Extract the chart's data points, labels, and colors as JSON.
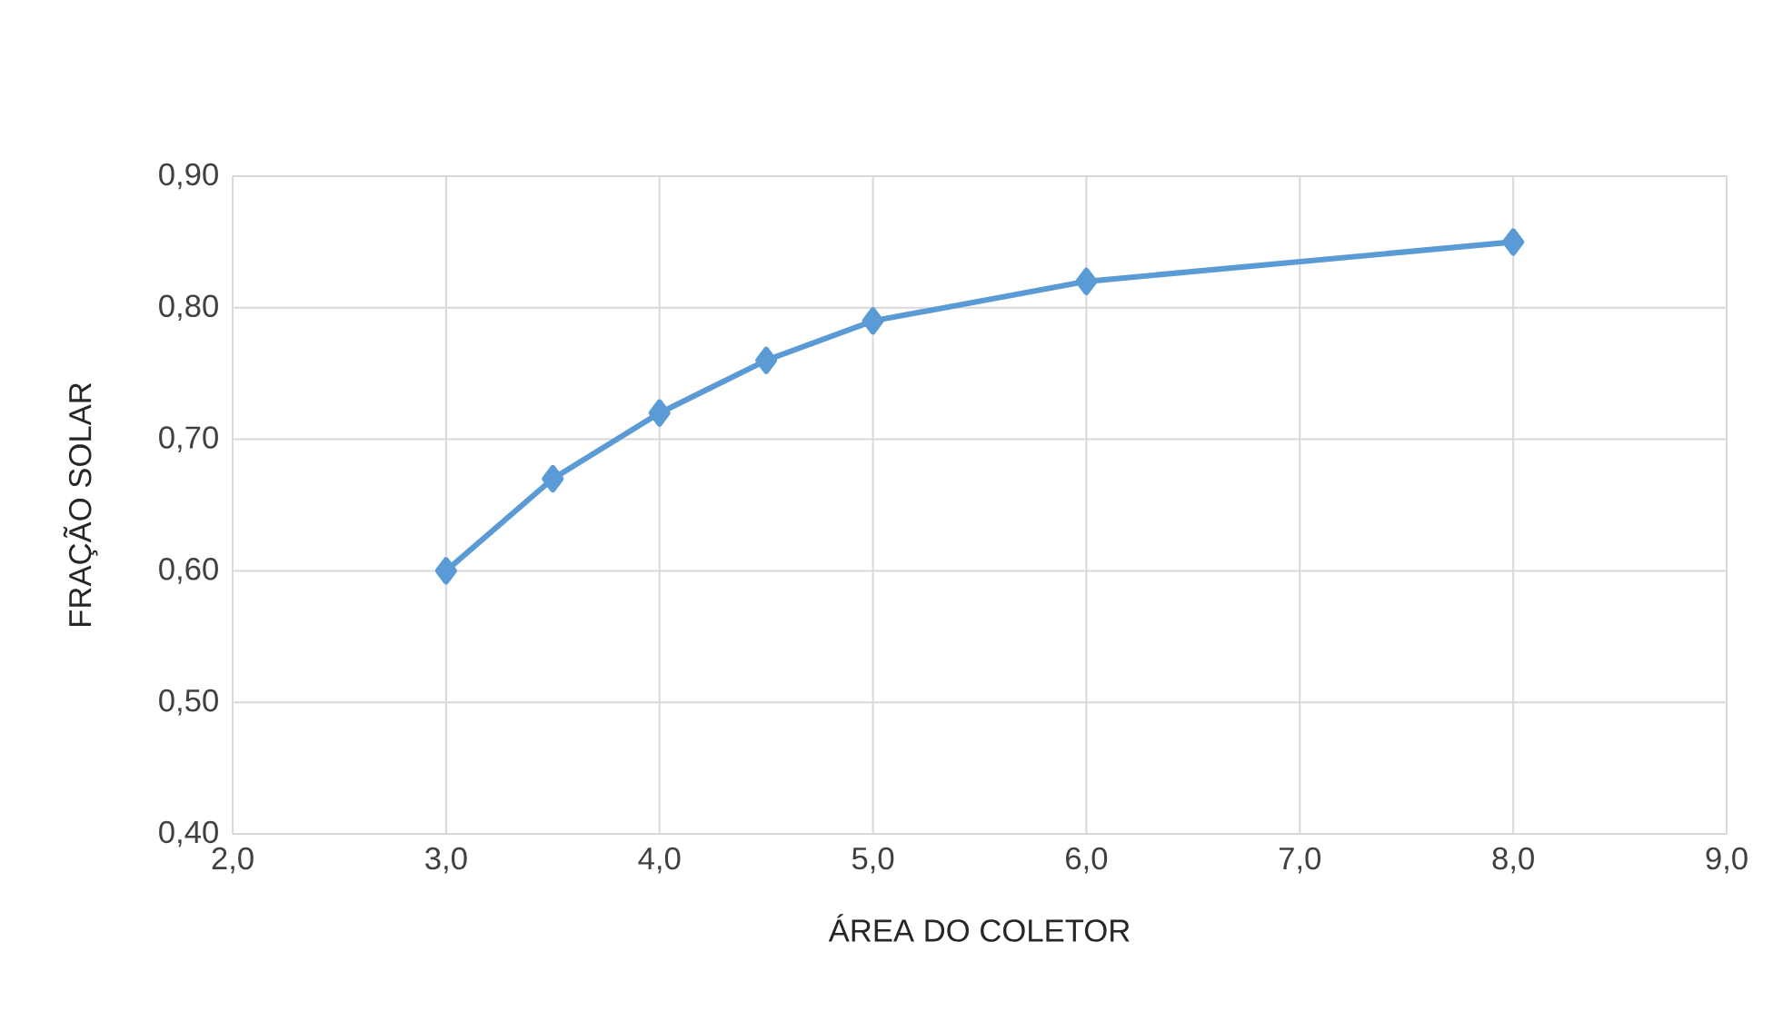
{
  "chart_data": {
    "type": "line",
    "xlabel": "ÁREA DO COLETOR",
    "ylabel": "FRAÇÃO SOLAR",
    "x": [
      3.0,
      3.5,
      4.0,
      4.5,
      5.0,
      6.0,
      8.0
    ],
    "series": [
      {
        "color": "#5b9bd5",
        "values": [
          0.6,
          0.67,
          0.72,
          0.76,
          0.79,
          0.82,
          0.85
        ]
      }
    ],
    "xlim": [
      2,
      9
    ],
    "ylim": [
      0.4,
      0.9
    ],
    "xticks": [
      {
        "value": 2,
        "label": "2,0"
      },
      {
        "value": 3,
        "label": "3,0"
      },
      {
        "value": 4,
        "label": "4,0"
      },
      {
        "value": 5,
        "label": "5,0"
      },
      {
        "value": 6,
        "label": "6,0"
      },
      {
        "value": 7,
        "label": "7,0"
      },
      {
        "value": 8,
        "label": "8,0"
      },
      {
        "value": 9,
        "label": "9,0"
      }
    ],
    "yticks": [
      {
        "value": 0.4,
        "label": "0,40"
      },
      {
        "value": 0.5,
        "label": "0,50"
      },
      {
        "value": 0.6,
        "label": "0,60"
      },
      {
        "value": 0.7,
        "label": "0,70"
      },
      {
        "value": 0.8,
        "label": "0,80"
      },
      {
        "value": 0.9,
        "label": "0,90"
      }
    ],
    "grid": true,
    "marker": "diamond",
    "line_style": "solid"
  }
}
